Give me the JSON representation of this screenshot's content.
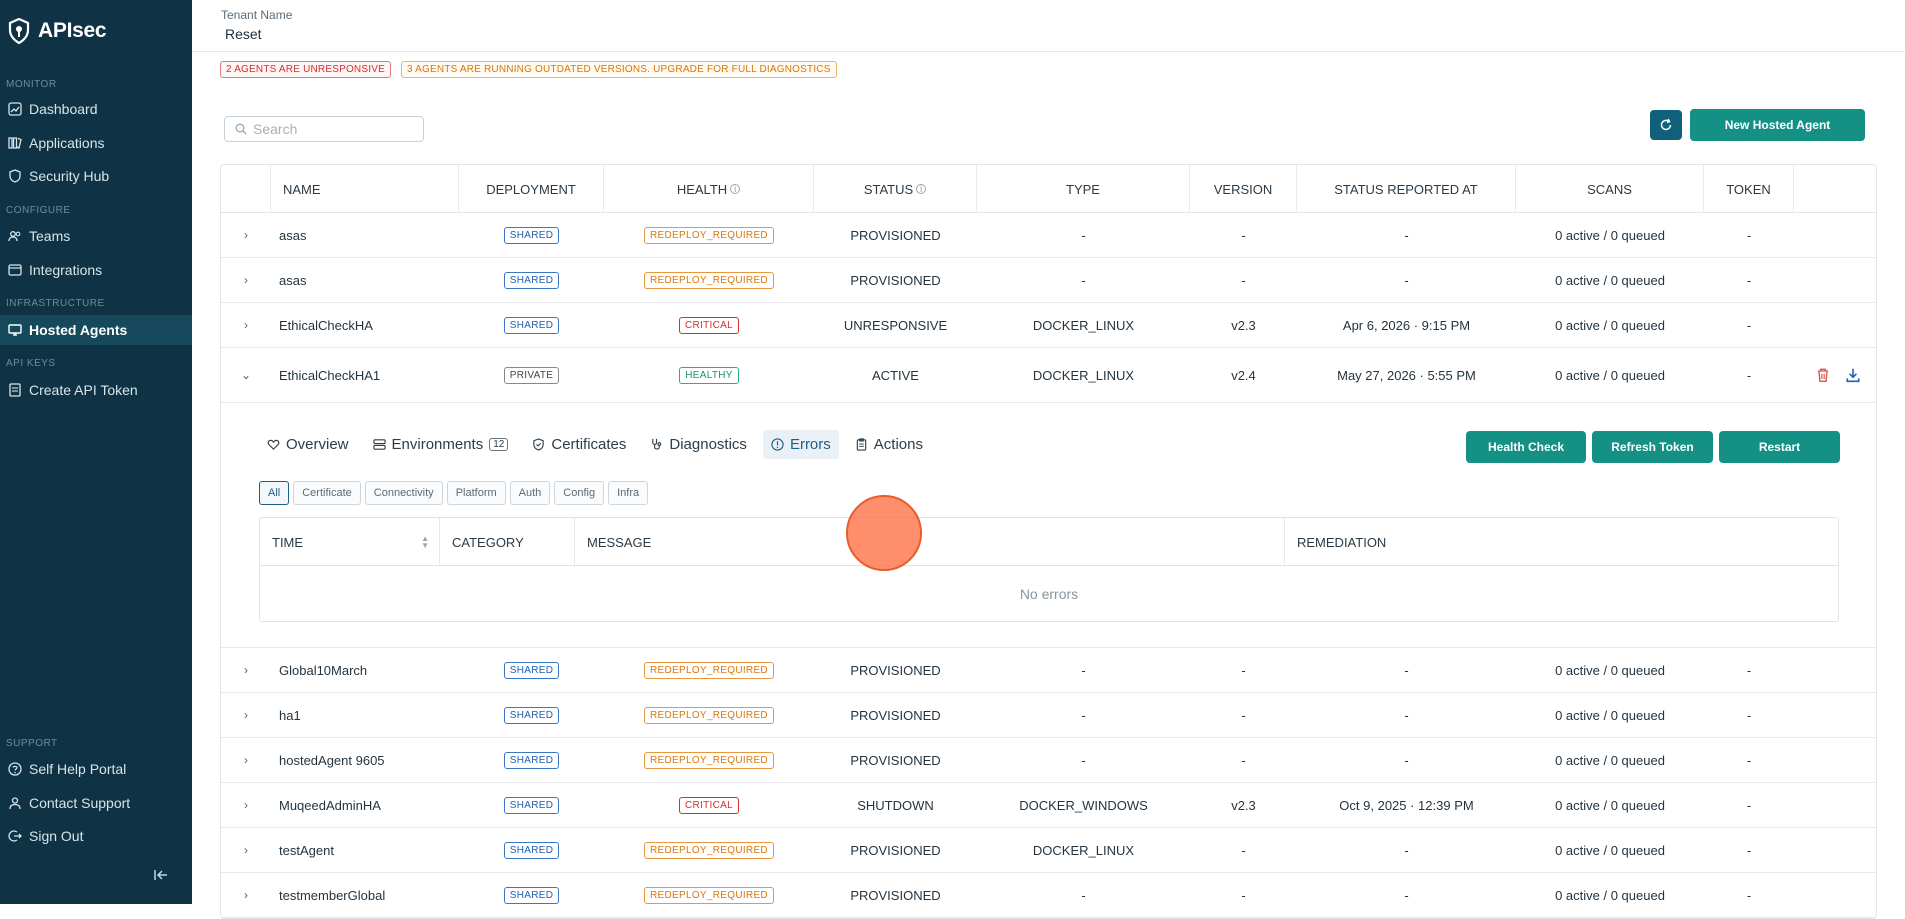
{
  "brand": {
    "name": "APIsec"
  },
  "sidebar": {
    "sections": {
      "monitor": "MONITOR",
      "configure": "CONFIGURE",
      "infrastructure": "INFRASTRUCTURE",
      "api_keys": "API KEYS",
      "support": "SUPPORT"
    },
    "items": {
      "dashboard": "Dashboard",
      "applications": "Applications",
      "security_hub": "Security Hub",
      "teams": "Teams",
      "integrations": "Integrations",
      "hosted_agents": "Hosted Agents",
      "create_api_token": "Create API Token",
      "self_help": "Self Help Portal",
      "contact_support": "Contact Support",
      "sign_out": "Sign Out"
    }
  },
  "header": {
    "tenant_label": "Tenant Name",
    "tenant_value": "Reset"
  },
  "alerts": {
    "unresponsive": "2 AGENTS ARE UNRESPONSIVE",
    "outdated": "3 AGENTS ARE RUNNING OUTDATED VERSIONS. UPGRADE FOR FULL DIAGNOSTICS"
  },
  "search": {
    "placeholder": "Search"
  },
  "buttons": {
    "new_hosted_agent": "New Hosted Agent"
  },
  "table": {
    "columns": [
      "NAME",
      "DEPLOYMENT",
      "HEALTH",
      "STATUS",
      "TYPE",
      "VERSION",
      "STATUS REPORTED AT",
      "SCANS",
      "TOKEN"
    ],
    "rows": [
      {
        "name": "asas",
        "deployment": "SHARED",
        "health": "REDEPLOY_REQUIRED",
        "status": "PROVISIONED",
        "type": "-",
        "version": "-",
        "reported": "-",
        "scans": "0 active / 0 queued",
        "token": "-"
      },
      {
        "name": "asas",
        "deployment": "SHARED",
        "health": "REDEPLOY_REQUIRED",
        "status": "PROVISIONED",
        "type": "-",
        "version": "-",
        "reported": "-",
        "scans": "0 active / 0 queued",
        "token": "-"
      },
      {
        "name": "EthicalCheckHA",
        "deployment": "SHARED",
        "health": "CRITICAL",
        "status": "UNRESPONSIVE",
        "type": "DOCKER_LINUX",
        "version": "v2.3",
        "reported": "Apr 6, 2026 · 9:15 PM",
        "scans": "0 active / 0 queued",
        "token": "-"
      },
      {
        "name": "EthicalCheckHA1",
        "deployment": "PRIVATE",
        "health": "HEALTHY",
        "status": "ACTIVE",
        "type": "DOCKER_LINUX",
        "version": "v2.4",
        "reported": "May 27, 2026 · 5:55 PM",
        "scans": "0 active / 0 queued",
        "token": "-"
      },
      {
        "name": "Global10March",
        "deployment": "SHARED",
        "health": "REDEPLOY_REQUIRED",
        "status": "PROVISIONED",
        "type": "-",
        "version": "-",
        "reported": "-",
        "scans": "0 active / 0 queued",
        "token": "-"
      },
      {
        "name": "ha1",
        "deployment": "SHARED",
        "health": "REDEPLOY_REQUIRED",
        "status": "PROVISIONED",
        "type": "-",
        "version": "-",
        "reported": "-",
        "scans": "0 active / 0 queued",
        "token": "-"
      },
      {
        "name": "hostedAgent 9605",
        "deployment": "SHARED",
        "health": "REDEPLOY_REQUIRED",
        "status": "PROVISIONED",
        "type": "-",
        "version": "-",
        "reported": "-",
        "scans": "0 active / 0 queued",
        "token": "-"
      },
      {
        "name": "MuqeedAdminHA",
        "deployment": "SHARED",
        "health": "CRITICAL",
        "status": "SHUTDOWN",
        "type": "DOCKER_WINDOWS",
        "version": "v2.3",
        "reported": "Oct 9, 2025 · 12:39 PM",
        "scans": "0 active / 0 queued",
        "token": "-"
      },
      {
        "name": "testAgent",
        "deployment": "SHARED",
        "health": "REDEPLOY_REQUIRED",
        "status": "PROVISIONED",
        "type": "DOCKER_LINUX",
        "version": "-",
        "reported": "-",
        "scans": "0 active / 0 queued",
        "token": "-"
      },
      {
        "name": "testmemberGlobal",
        "deployment": "SHARED",
        "health": "REDEPLOY_REQUIRED",
        "status": "PROVISIONED",
        "type": "-",
        "version": "-",
        "reported": "-",
        "scans": "0 active / 0 queued",
        "token": "-"
      }
    ]
  },
  "panel": {
    "tabs": {
      "overview": "Overview",
      "environments": "Environments",
      "environments_count": "12",
      "certificates": "Certificates",
      "diagnostics": "Diagnostics",
      "errors": "Errors",
      "actions": "Actions"
    },
    "buttons": {
      "health_check": "Health Check",
      "refresh_token": "Refresh Token",
      "restart": "Restart"
    },
    "filters": [
      "All",
      "Certificate",
      "Connectivity",
      "Platform",
      "Auth",
      "Config",
      "Infra"
    ],
    "error_columns": {
      "time": "TIME",
      "category": "CATEGORY",
      "message": "MESSAGE",
      "remediation": "REMEDIATION"
    },
    "empty": "No errors"
  },
  "colors": {
    "sidebar_bg": "#0f3344",
    "primary": "#149184",
    "accent_blue": "#10607a"
  }
}
